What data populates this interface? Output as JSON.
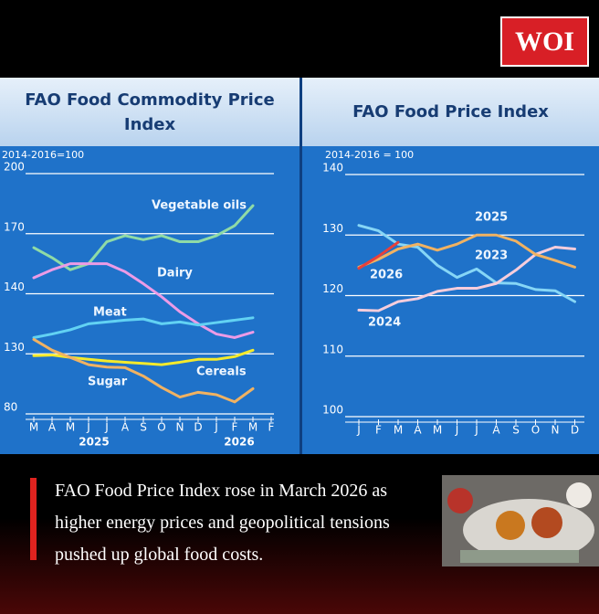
{
  "brand": "WOI",
  "chart_data": [
    {
      "type": "line",
      "title": "FAO Food Commodity Price Index",
      "subtitle": "2014-2016=100",
      "categories": [
        "M",
        "A",
        "M",
        "J",
        "J",
        "A",
        "S",
        "O",
        "N",
        "D",
        "J",
        "F",
        "M",
        "F"
      ],
      "x_groups": [
        "2025",
        "2026"
      ],
      "ylim": [
        80,
        200
      ],
      "yticks": [
        80,
        130,
        140,
        170,
        200
      ],
      "grid": true,
      "series": [
        {
          "name": "Vegetable oils",
          "color": "#8fdba6",
          "values": [
            163,
            158,
            152,
            155,
            166,
            169,
            167,
            169,
            166,
            166,
            169,
            174,
            184,
            null
          ]
        },
        {
          "name": "Dairy",
          "color": "#ec9be6",
          "values": [
            148,
            152,
            155,
            155,
            155,
            151,
            145,
            139.5,
            137,
            135,
            133.3,
            132.7,
            133.6,
            null
          ]
        },
        {
          "name": "Meat",
          "color": "#62d2f3",
          "values": [
            132.7,
            133.3,
            134,
            135,
            135.3,
            135.6,
            135.8,
            135,
            135.3,
            134.8,
            135.2,
            135.6,
            136,
            null
          ]
        },
        {
          "name": "Cereals",
          "color": "#f4ea2c",
          "values": [
            128.5,
            129,
            127,
            125.4,
            124,
            123,
            122,
            121,
            123,
            125.4,
            125.4,
            127.7,
            130.6,
            null
          ]
        },
        {
          "name": "Sugar",
          "color": "#f0b262",
          "values": [
            132.4,
            130.6,
            127,
            121,
            119,
            118.5,
            111.5,
            102,
            94,
            98,
            96,
            90,
            101,
            null
          ]
        }
      ]
    },
    {
      "type": "line",
      "title": "FAO Food Price Index",
      "subtitle": "2014-2016 = 100",
      "categories": [
        "J",
        "F",
        "M",
        "A",
        "M",
        "J",
        "J",
        "A",
        "S",
        "O",
        "N",
        "D"
      ],
      "ylim": [
        100,
        140
      ],
      "yticks": [
        100,
        110,
        120,
        130,
        140
      ],
      "grid": true,
      "series": [
        {
          "name": "2023",
          "color": "#86d6f6",
          "values": [
            131.6,
            130.7,
            128.5,
            128,
            125,
            123,
            124.4,
            122.1,
            122,
            121,
            120.8,
            119
          ]
        },
        {
          "name": "2024",
          "color": "#f6cddc",
          "values": [
            117.6,
            117.5,
            119,
            119.5,
            120.7,
            121.2,
            121.2,
            122,
            124.2,
            126.8,
            128,
            127.7
          ]
        },
        {
          "name": "2025",
          "color": "#f0b262",
          "values": [
            124.7,
            126,
            127.7,
            128.5,
            127.5,
            128.5,
            130,
            130,
            129,
            126.8,
            125.8,
            124.7
          ]
        },
        {
          "name": "2026",
          "color": "#e8403a",
          "values": [
            124.5,
            126.5,
            128.8,
            null,
            null,
            null,
            null,
            null,
            null,
            null,
            null,
            null
          ]
        }
      ]
    }
  ],
  "caption": "FAO Food Price Index rose in March 2026 as higher energy prices and geopolitical tensions pushed up global food costs."
}
